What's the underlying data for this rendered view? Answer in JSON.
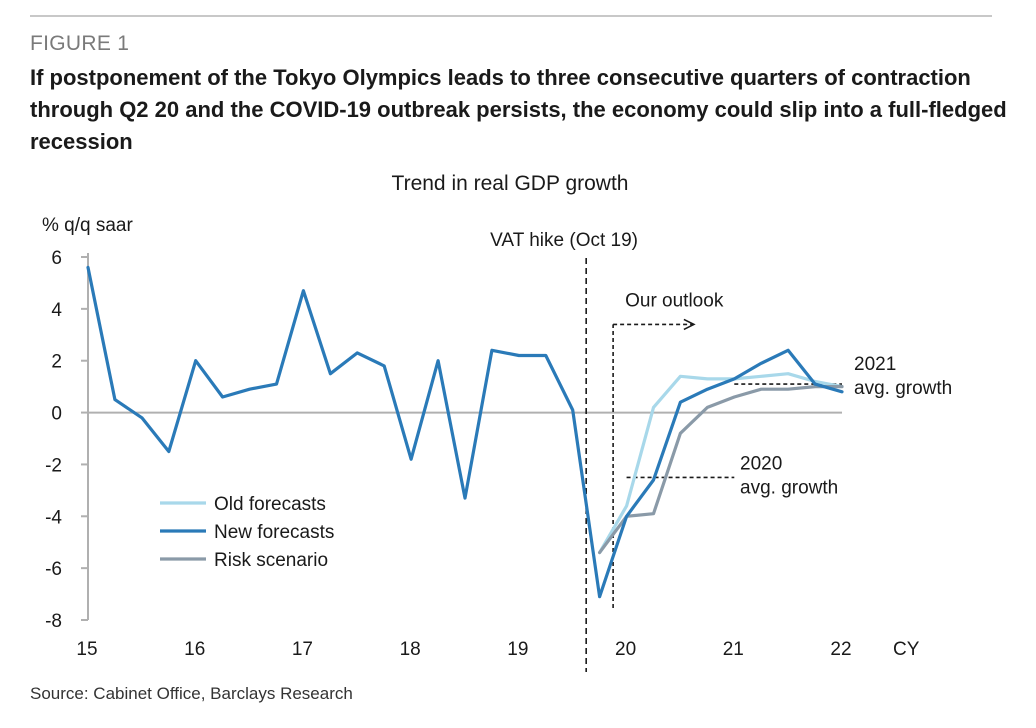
{
  "figure": {
    "label": "FIGURE 1",
    "title": "If postponement of the Tokyo Olympics leads to three consecutive quarters of contraction through Q2 20 and the COVID-19 outbreak persists, the economy could slip into a full-fledged recession",
    "source": "Source: Cabinet Office, Barclays Research"
  },
  "chart_data": {
    "type": "line",
    "title": "Trend in real GDP growth",
    "ylabel": "% q/q saar",
    "xlabel": "CY",
    "ylim": [
      -8,
      6
    ],
    "yticks": [
      6,
      4,
      2,
      0,
      -2,
      -4,
      -6,
      -8
    ],
    "xlim": [
      2015,
      2022
    ],
    "xticks": [
      {
        "label": "15",
        "x": 2015
      },
      {
        "label": "16",
        "x": 2016
      },
      {
        "label": "17",
        "x": 2017
      },
      {
        "label": "18",
        "x": 2018
      },
      {
        "label": "19",
        "x": 2019
      },
      {
        "label": "20",
        "x": 2020
      },
      {
        "label": "21",
        "x": 2021
      },
      {
        "label": "22",
        "x": 2022
      }
    ],
    "series": [
      {
        "name": "Old forecasts",
        "color": "#a8d8ea",
        "x": [
          2019.75,
          2020.0,
          2020.25,
          2020.5,
          2020.75,
          2021.0,
          2021.25,
          2021.5,
          2021.75,
          2022.0
        ],
        "y": [
          -5.4,
          -3.6,
          0.2,
          1.4,
          1.3,
          1.3,
          1.4,
          1.5,
          1.2,
          1.0
        ]
      },
      {
        "name": "New forecasts",
        "color": "#2a7ab8",
        "x": [
          2015.0,
          2015.25,
          2015.5,
          2015.75,
          2016.0,
          2016.25,
          2016.5,
          2016.75,
          2017.0,
          2017.25,
          2017.5,
          2017.75,
          2018.0,
          2018.25,
          2018.5,
          2018.75,
          2019.0,
          2019.25,
          2019.5,
          2019.75,
          2020.0,
          2020.25,
          2020.5,
          2020.75,
          2021.0,
          2021.25,
          2021.5,
          2021.75,
          2022.0
        ],
        "y": [
          5.6,
          0.5,
          -0.2,
          -1.5,
          2.0,
          0.6,
          0.9,
          1.1,
          4.7,
          1.5,
          2.3,
          1.8,
          -1.8,
          2.0,
          -3.3,
          2.4,
          2.2,
          2.2,
          0.1,
          -7.1,
          -4.0,
          -2.6,
          0.4,
          0.9,
          1.3,
          1.9,
          2.4,
          1.1,
          0.8
        ]
      },
      {
        "name": "Risk scenario",
        "color": "#8a9aa8",
        "x": [
          2019.75,
          2020.0,
          2020.25,
          2020.5,
          2020.75,
          2021.0,
          2021.25,
          2021.5,
          2021.75,
          2022.0
        ],
        "y": [
          -5.4,
          -4.0,
          -3.9,
          -0.8,
          0.2,
          0.6,
          0.9,
          0.9,
          1.0,
          1.0
        ]
      }
    ],
    "annotations": [
      {
        "text": "VAT hike (Oct 19)",
        "kind": "vertical-dashed-line",
        "x": 2019.625
      },
      {
        "text": "Our outlook",
        "kind": "dashed-arrow",
        "x_from": 2019.875,
        "x_to": 2020.625,
        "y": 3.4
      },
      {
        "text": "2021 avg. growth",
        "kind": "dashed-level",
        "x_from": 2021.0,
        "x_to": 2022.0,
        "y": 1.1
      },
      {
        "text": "2020 avg. growth",
        "kind": "dashed-level",
        "x_from": 2020.0,
        "x_to": 2021.0,
        "y": -2.5
      }
    ],
    "legend_placement": "bottom-left",
    "grid": false
  }
}
